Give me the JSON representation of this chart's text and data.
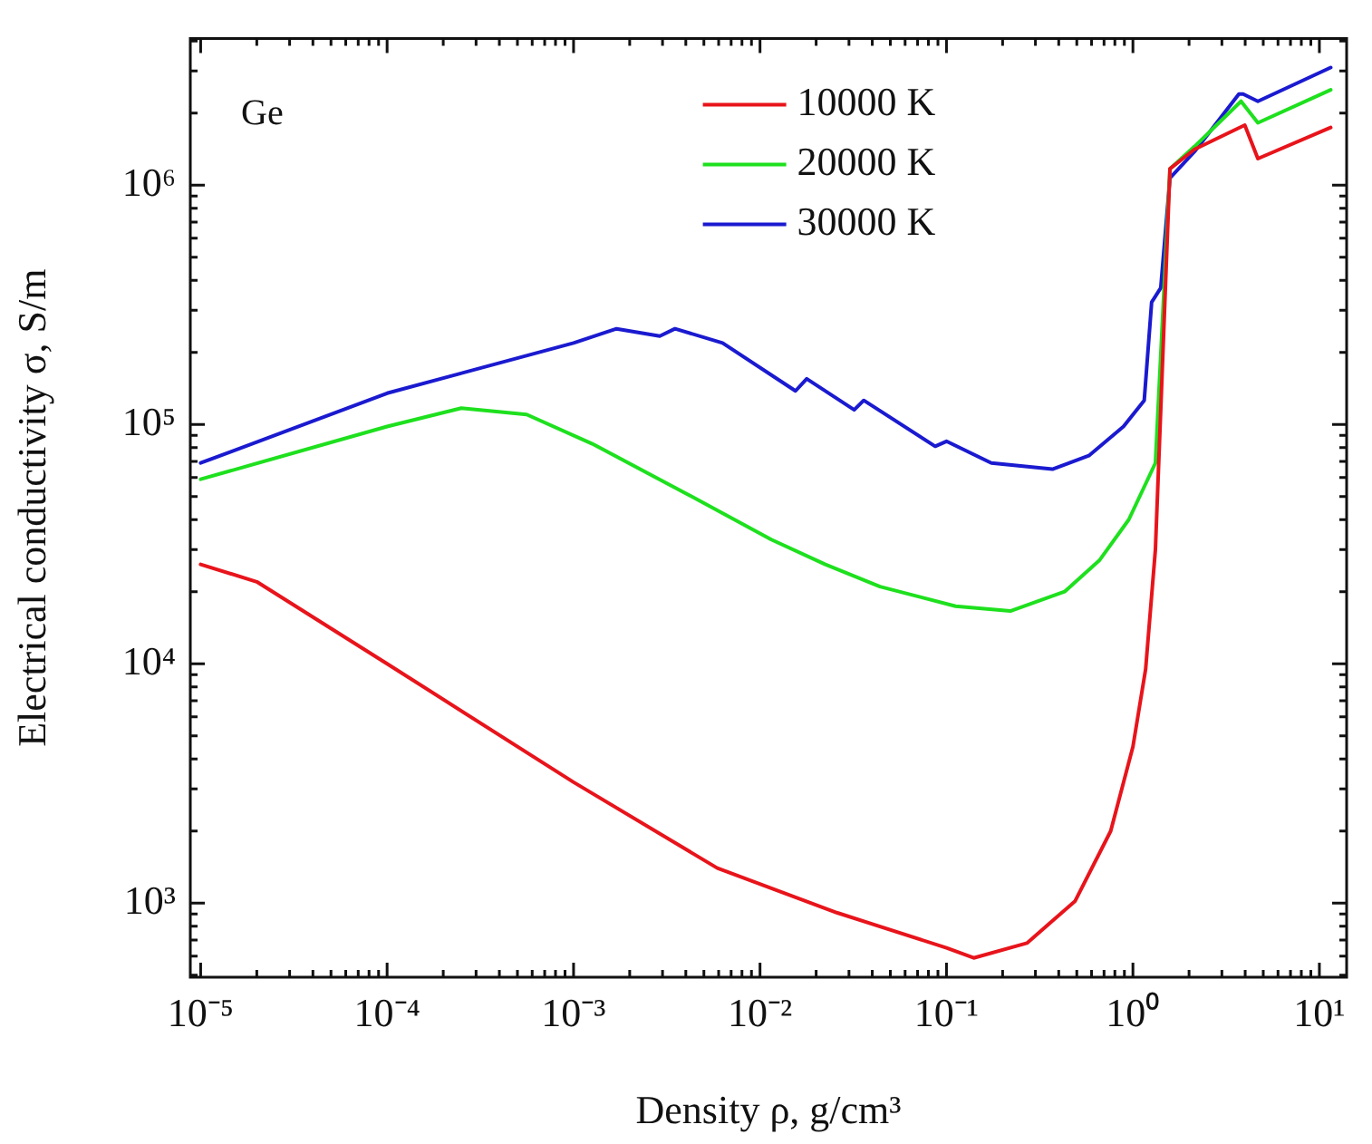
{
  "chart_data": {
    "type": "line",
    "xlabel": "Density ρ, g/cm³",
    "ylabel": "Electrical conductivity σ, S/m",
    "log": "xy",
    "legend": "top",
    "grid": false,
    "annotations": [
      "Ge"
    ],
    "xlim": [
      8.8e-06,
      14
    ],
    "ylim": [
      490,
      4100000
    ],
    "xticks": [
      {
        "value": 1e-05,
        "label": "10⁻⁵"
      },
      {
        "value": 2e-05,
        "label": null
      },
      {
        "value": 3e-05,
        "label": null
      },
      {
        "value": 4e-05,
        "label": null
      },
      {
        "value": 5e-05,
        "label": null
      },
      {
        "value": 6e-05,
        "label": null
      },
      {
        "value": 7e-05,
        "label": null
      },
      {
        "value": 8e-05,
        "label": null
      },
      {
        "value": 9e-05,
        "label": null
      },
      {
        "value": 0.0001,
        "label": "10⁻⁴"
      },
      {
        "value": 0.0002,
        "label": null
      },
      {
        "value": 0.0003,
        "label": null
      },
      {
        "value": 0.0004,
        "label": null
      },
      {
        "value": 0.0005,
        "label": null
      },
      {
        "value": 0.0006,
        "label": null
      },
      {
        "value": 0.0007,
        "label": null
      },
      {
        "value": 0.0008,
        "label": null
      },
      {
        "value": 0.0009,
        "label": null
      },
      {
        "value": 0.001,
        "label": "10⁻³"
      },
      {
        "value": 0.002,
        "label": null
      },
      {
        "value": 0.003,
        "label": null
      },
      {
        "value": 0.004,
        "label": null
      },
      {
        "value": 0.005,
        "label": null
      },
      {
        "value": 0.006,
        "label": null
      },
      {
        "value": 0.007,
        "label": null
      },
      {
        "value": 0.008,
        "label": null
      },
      {
        "value": 0.009,
        "label": null
      },
      {
        "value": 0.01,
        "label": "10⁻²"
      },
      {
        "value": 0.02,
        "label": null
      },
      {
        "value": 0.03,
        "label": null
      },
      {
        "value": 0.04,
        "label": null
      },
      {
        "value": 0.05,
        "label": null
      },
      {
        "value": 0.06,
        "label": null
      },
      {
        "value": 0.07,
        "label": null
      },
      {
        "value": 0.08,
        "label": null
      },
      {
        "value": 0.09,
        "label": null
      },
      {
        "value": 0.1,
        "label": "10⁻¹"
      },
      {
        "value": 0.2,
        "label": null
      },
      {
        "value": 0.3,
        "label": null
      },
      {
        "value": 0.4,
        "label": null
      },
      {
        "value": 0.5,
        "label": null
      },
      {
        "value": 0.6,
        "label": null
      },
      {
        "value": 0.7,
        "label": null
      },
      {
        "value": 0.8,
        "label": null
      },
      {
        "value": 0.9,
        "label": null
      },
      {
        "value": 1,
        "label": "10⁰"
      },
      {
        "value": 2,
        "label": null
      },
      {
        "value": 3,
        "label": null
      },
      {
        "value": 4,
        "label": null
      },
      {
        "value": 5,
        "label": null
      },
      {
        "value": 6,
        "label": null
      },
      {
        "value": 7,
        "label": null
      },
      {
        "value": 8,
        "label": null
      },
      {
        "value": 9,
        "label": null
      },
      {
        "value": 10,
        "label": "10¹"
      }
    ],
    "yticks": [
      {
        "value": 500,
        "label": null
      },
      {
        "value": 600,
        "label": null
      },
      {
        "value": 700,
        "label": null
      },
      {
        "value": 800,
        "label": null
      },
      {
        "value": 900,
        "label": null
      },
      {
        "value": 1000,
        "label": "10³"
      },
      {
        "value": 2000,
        "label": null
      },
      {
        "value": 3000,
        "label": null
      },
      {
        "value": 4000,
        "label": null
      },
      {
        "value": 5000,
        "label": null
      },
      {
        "value": 6000,
        "label": null
      },
      {
        "value": 7000,
        "label": null
      },
      {
        "value": 8000,
        "label": null
      },
      {
        "value": 9000,
        "label": null
      },
      {
        "value": 10000,
        "label": "10⁴"
      },
      {
        "value": 20000,
        "label": null
      },
      {
        "value": 30000,
        "label": null
      },
      {
        "value": 40000,
        "label": null
      },
      {
        "value": 50000,
        "label": null
      },
      {
        "value": 60000,
        "label": null
      },
      {
        "value": 70000,
        "label": null
      },
      {
        "value": 80000,
        "label": null
      },
      {
        "value": 90000,
        "label": null
      },
      {
        "value": 100000,
        "label": "10⁵"
      },
      {
        "value": 200000,
        "label": null
      },
      {
        "value": 300000,
        "label": null
      },
      {
        "value": 400000,
        "label": null
      },
      {
        "value": 500000,
        "label": null
      },
      {
        "value": 600000,
        "label": null
      },
      {
        "value": 700000,
        "label": null
      },
      {
        "value": 800000,
        "label": null
      },
      {
        "value": 900000,
        "label": null
      },
      {
        "value": 1000000,
        "label": "10⁶"
      },
      {
        "value": 2000000,
        "label": null
      },
      {
        "value": 3000000,
        "label": null
      },
      {
        "value": 4000000,
        "label": null
      }
    ],
    "series": [
      {
        "name": "10000 K",
        "color": "#e8141b",
        "x": [
          1e-05,
          2e-05,
          0.0001,
          0.001,
          0.0059,
          0.026,
          0.1,
          0.14,
          0.27,
          0.49,
          0.76,
          1.0,
          1.17,
          1.32,
          1.58,
          2.14,
          3.98,
          4.68,
          11.5
        ],
        "values": [
          26000,
          22000,
          10000,
          3200,
          1400,
          910,
          650,
          590,
          680,
          1020,
          2000,
          4500,
          9500,
          30000,
          1170000,
          1410000,
          1780000,
          1290000,
          1740000
        ]
      },
      {
        "name": "20000 K",
        "color": "#1ee01e",
        "x": [
          1e-05,
          0.0001,
          0.00025,
          0.00056,
          0.00126,
          0.0041,
          0.0115,
          0.0224,
          0.044,
          0.112,
          0.22,
          0.43,
          0.66,
          0.95,
          1.32,
          1.58,
          2.14,
          3.8,
          4.68,
          11.5
        ],
        "values": [
          59000,
          98000,
          117000,
          110000,
          83000,
          51000,
          33000,
          26000,
          21000,
          17400,
          16600,
          20000,
          27000,
          40000,
          69000,
          1170000,
          1450000,
          2240000,
          1820000,
          2500000
        ]
      },
      {
        "name": "30000 K",
        "color": "#1a1ad0",
        "x": [
          1e-05,
          0.0001,
          0.001,
          0.0017,
          0.0029,
          0.0035,
          0.0063,
          0.0155,
          0.0178,
          0.032,
          0.036,
          0.087,
          0.1,
          0.174,
          0.37,
          0.58,
          0.89,
          1.15,
          1.26,
          1.41,
          1.58,
          2.14,
          3.7,
          3.9,
          4.68,
          11.5
        ],
        "values": [
          69000,
          135000,
          219000,
          251000,
          234000,
          251000,
          219000,
          138000,
          155000,
          115000,
          126000,
          81000,
          85000,
          69000,
          65000,
          74000,
          98000,
          126000,
          324000,
          372000,
          1070000,
          1380000,
          2400000,
          2400000,
          2240000,
          3100000
        ]
      }
    ]
  }
}
